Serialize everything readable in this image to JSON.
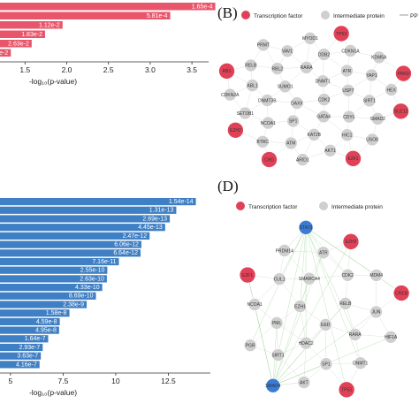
{
  "colors": {
    "red_bar": "#e8566b",
    "blue_bar": "#3f7fc4",
    "tf_node": "#e04157",
    "ip_node": "#cfcfcf",
    "target_node": "#3a7bd5",
    "edge_gray": "#bdbdbd",
    "edge_green": "#77c56d"
  },
  "panel_labels": {
    "b": "(B)",
    "d": "(D)"
  },
  "legend": {
    "tf": "Transcription factor",
    "ip": "Intermediate protein",
    "partial": "PP"
  },
  "chart_data": [
    {
      "type": "bar",
      "orientation": "horizontal",
      "xlabel": "-log₁₀(p-value)",
      "xticks": [
        "1.5",
        "2.0",
        "2.5",
        "3.0",
        "3.5"
      ],
      "xlim": [
        1.2,
        3.7
      ],
      "series": [
        {
          "values": [
            3.78,
            3.24,
            1.95,
            1.74,
            1.58,
            1.33
          ],
          "labels": [
            "1.65e-4",
            "5.81e-4",
            "1.12e-2",
            "1.83e-2",
            "2.63e-2",
            "?e-2"
          ]
        }
      ]
    },
    {
      "type": "bar",
      "orientation": "horizontal",
      "xlabel": "-log₁₀(p-value)",
      "xticks": [
        "5",
        "7.5",
        "10",
        "12.5",
        "15"
      ],
      "xlim": [
        4.5,
        14.5
      ],
      "series": [
        {
          "values": [
            13.81,
            12.88,
            12.57,
            12.35,
            11.61,
            11.22,
            11.18,
            10.15,
            9.6,
            9.58,
            9.36,
            9.06,
            8.62,
            7.8,
            7.34,
            7.31,
            6.79,
            6.53,
            6.44,
            6.38
          ],
          "labels": [
            "1.54e-14",
            "1.31e-13",
            "2.69e-13",
            "4.45e-13",
            "2.47e-12",
            "6.06e-12",
            "6.64e-12",
            "7.16e-11",
            "2.55e-10",
            "2.63e-10",
            "4.33e-10",
            "8.69e-10",
            "2.38e-9",
            "1.58e-8",
            "4.59e-8",
            "4.95e-8",
            "1.64e-7",
            "2.93e-7",
            "3.63e-7",
            "4.16e-7"
          ]
        }
      ]
    }
  ],
  "network_b": {
    "nodes": [
      {
        "label": "CDK2",
        "type": "ip"
      },
      {
        "label": "DAXX",
        "type": "ip"
      },
      {
        "label": "DNMT1",
        "type": "ip"
      },
      {
        "label": "GATA4",
        "type": "ip"
      },
      {
        "label": "SUMO1",
        "type": "ip"
      },
      {
        "label": "USP7",
        "type": "ip"
      },
      {
        "label": "SP1",
        "type": "ip"
      },
      {
        "label": "RARA",
        "type": "ip"
      },
      {
        "label": "CDYL",
        "type": "ip"
      },
      {
        "label": "DNMT3B",
        "type": "ip"
      },
      {
        "label": "ATR",
        "type": "ip"
      },
      {
        "label": "KAT2B",
        "type": "ip"
      },
      {
        "label": "RBL2",
        "type": "ip"
      },
      {
        "label": "SIRT1",
        "type": "ip"
      },
      {
        "label": "NCOA1",
        "type": "ip"
      },
      {
        "label": "DDB2",
        "type": "ip"
      },
      {
        "label": "HIC1",
        "type": "ip"
      },
      {
        "label": "ABL1",
        "type": "ip"
      },
      {
        "label": "YAP1",
        "type": "ip"
      },
      {
        "label": "ATM",
        "type": "ip"
      },
      {
        "label": "VAV1",
        "type": "ip"
      },
      {
        "label": "SMAD2",
        "type": "ip"
      },
      {
        "label": "SETDB1",
        "type": "ip"
      },
      {
        "label": "CDKN1A",
        "type": "ip"
      },
      {
        "label": "AKT1",
        "type": "ip"
      },
      {
        "label": "RELB",
        "type": "ip"
      },
      {
        "label": "HEX",
        "type": "ip"
      },
      {
        "label": "BTRC",
        "type": "ip"
      },
      {
        "label": "MYOD1",
        "type": "ip"
      },
      {
        "label": "USO8",
        "type": "ip"
      },
      {
        "label": "CDKN2A",
        "type": "ip"
      },
      {
        "label": "KDM5A",
        "type": "ip"
      },
      {
        "label": "ARID1",
        "type": "ip"
      },
      {
        "label": "PRMT",
        "type": "ip"
      },
      {
        "label": "SUZ12",
        "type": "tf"
      },
      {
        "label": "EZH2",
        "type": "tf"
      },
      {
        "label": "TP53",
        "type": "tf"
      },
      {
        "label": "E2F1",
        "type": "tf"
      },
      {
        "label": "RB1",
        "type": "tf"
      },
      {
        "label": "PRKD",
        "type": "tf"
      },
      {
        "label": "CHD",
        "type": "tf"
      }
    ]
  },
  "network_d": {
    "nodes": [
      {
        "label": "EED",
        "type": "ip"
      },
      {
        "label": "EZH1",
        "type": "ip"
      },
      {
        "label": "RELB",
        "type": "ip"
      },
      {
        "label": "HDAC2",
        "type": "ip"
      },
      {
        "label": "SMARCA4",
        "type": "ip"
      },
      {
        "label": "RARA",
        "type": "ip"
      },
      {
        "label": "PML",
        "type": "ip"
      },
      {
        "label": "CDK2",
        "type": "ip"
      },
      {
        "label": "SP1",
        "type": "ip"
      },
      {
        "label": "CUL1",
        "type": "ip"
      },
      {
        "label": "JUN",
        "type": "ip"
      },
      {
        "label": "SIRT1",
        "type": "ip"
      },
      {
        "label": "ATR",
        "type": "ip"
      },
      {
        "label": "DNMT1",
        "type": "ip"
      },
      {
        "label": "NCOA1",
        "type": "ip"
      },
      {
        "label": "MDM4",
        "type": "ip"
      },
      {
        "label": "AKT",
        "type": "ip"
      },
      {
        "label": "PRDM14",
        "type": "ip"
      },
      {
        "label": "HIF1A",
        "type": "ip"
      },
      {
        "label": "PGR",
        "type": "ip"
      },
      {
        "label": "EZH2",
        "type": "tf"
      },
      {
        "label": "TP53",
        "type": "tf"
      },
      {
        "label": "E2F1",
        "type": "tf"
      },
      {
        "label": "CREB",
        "type": "tf"
      },
      {
        "label": "SMAD4",
        "type": "target"
      },
      {
        "label": "STAT3",
        "type": "target"
      }
    ]
  }
}
